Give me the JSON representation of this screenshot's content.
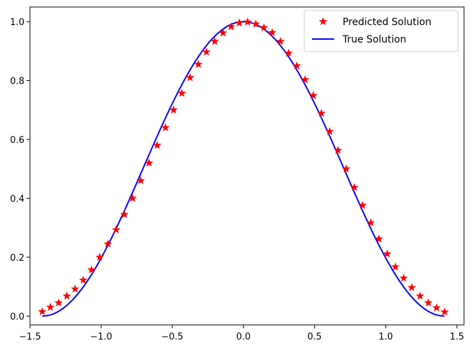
{
  "chart_data": {
    "type": "line",
    "title": "",
    "xlabel": "",
    "ylabel": "",
    "xlim": [
      -1.5,
      1.55
    ],
    "ylim": [
      -0.03,
      1.05
    ],
    "x_ticks": [
      -1.5,
      -1.0,
      -0.5,
      0.0,
      0.5,
      1.0,
      1.5
    ],
    "x_tick_labels": [
      "−1.5",
      "−1.0",
      "−0.5",
      "0.0",
      "0.5",
      "1.0",
      "1.5"
    ],
    "y_ticks": [
      0.0,
      0.2,
      0.4,
      0.6,
      0.8,
      1.0
    ],
    "y_tick_labels": [
      "0.0",
      "0.2",
      "0.4",
      "0.6",
      "0.8",
      "1.0"
    ],
    "grid": false,
    "legend_position": "top-right",
    "series": [
      {
        "name": "Predicted Solution",
        "type": "scatter",
        "marker": "star",
        "color": "#ff0000",
        "x": [
          -1.414,
          -1.357,
          -1.299,
          -1.241,
          -1.183,
          -1.126,
          -1.068,
          -1.01,
          -0.952,
          -0.895,
          -0.837,
          -0.779,
          -0.722,
          -0.664,
          -0.606,
          -0.548,
          -0.491,
          -0.433,
          -0.375,
          -0.317,
          -0.26,
          -0.202,
          -0.144,
          -0.087,
          -0.029,
          0.029,
          0.087,
          0.144,
          0.202,
          0.26,
          0.317,
          0.375,
          0.433,
          0.491,
          0.548,
          0.606,
          0.664,
          0.722,
          0.779,
          0.837,
          0.895,
          0.952,
          1.01,
          1.068,
          1.126,
          1.183,
          1.241,
          1.299,
          1.357,
          1.414
        ],
        "y": [
          0.015,
          0.03,
          0.045,
          0.068,
          0.092,
          0.122,
          0.157,
          0.2,
          0.245,
          0.293,
          0.345,
          0.4,
          0.46,
          0.52,
          0.58,
          0.64,
          0.7,
          0.757,
          0.81,
          0.855,
          0.897,
          0.933,
          0.962,
          0.983,
          0.996,
          0.999,
          0.992,
          0.98,
          0.963,
          0.933,
          0.893,
          0.85,
          0.803,
          0.749,
          0.689,
          0.627,
          0.563,
          0.5,
          0.437,
          0.376,
          0.317,
          0.262,
          0.211,
          0.167,
          0.129,
          0.097,
          0.068,
          0.045,
          0.028,
          0.014
        ]
      },
      {
        "name": "True Solution",
        "type": "line",
        "color": "#0000ff",
        "x_range": [
          -1.414,
          1.414
        ],
        "function": "0.5 * (1 + cos(pi * x / 1.414))"
      }
    ]
  }
}
